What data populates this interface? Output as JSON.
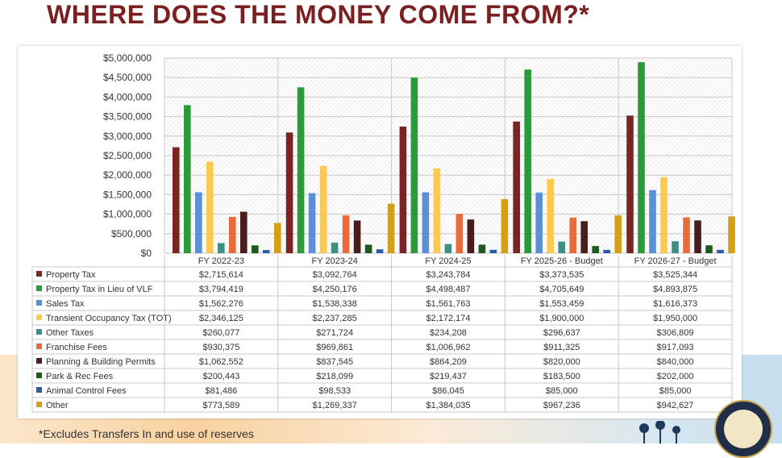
{
  "page": {
    "title": "WHERE DOES THE MONEY COME FROM?*",
    "footnote": "*Excludes Transfers In and use of reserves"
  },
  "chart_data": {
    "type": "bar",
    "categories": [
      "FY 2022-23",
      "FY 2023-24",
      "FY 2024-25",
      "FY 2025-26 - Budget",
      "FY 2026-27 - Budget"
    ],
    "ylim": [
      0,
      5000000
    ],
    "yticks": [
      "$5,000,000",
      "$4,500,000",
      "$4,000,000",
      "$3,500,000",
      "$3,000,000",
      "$2,500,000",
      "$2,000,000",
      "$1,500,000",
      "$1,000,000",
      "$500,000",
      "$0"
    ],
    "ytick_values": [
      5000000,
      4500000,
      4000000,
      3500000,
      3000000,
      2500000,
      2000000,
      1500000,
      1000000,
      500000,
      0
    ],
    "legend_position": "data table below chart",
    "series": [
      {
        "name": "Property Tax",
        "color": "#7b2424",
        "values": [
          2715614,
          3092764,
          3243784,
          3373535,
          3525344
        ],
        "labels": [
          "$2,715,614",
          "$3,092,764",
          "$3,243,784",
          "$3,373,535",
          "$3,525,344"
        ]
      },
      {
        "name": "Property Tax in Lieu of VLF",
        "color": "#2a9a3a",
        "values": [
          3794419,
          4250176,
          4498487,
          4705649,
          4893875
        ],
        "labels": [
          "$3,794,419",
          "$4,250,176",
          "$4,498,487",
          "$4,705,649",
          "$4,893,875"
        ]
      },
      {
        "name": "Sales Tax",
        "color": "#5b8fd6",
        "values": [
          1562276,
          1538338,
          1561763,
          1553459,
          1616373
        ],
        "labels": [
          "$1,562,276",
          "$1,538,338",
          "$1,561,763",
          "$1,553,459",
          "$1,616,373"
        ]
      },
      {
        "name": "Transient Occupancy Tax (TOT)",
        "color": "#ffc94d",
        "values": [
          2346125,
          2237285,
          2172174,
          1900000,
          1950000
        ],
        "labels": [
          "$2,346,125",
          "$2,237,285",
          "$2,172,174",
          "$1,900,000",
          "$1,950,000"
        ]
      },
      {
        "name": "Other Taxes",
        "color": "#3f8f84",
        "values": [
          260077,
          271724,
          234208,
          296637,
          306809
        ],
        "labels": [
          "$260,077",
          "$271,724",
          "$234,208",
          "$296,637",
          "$306,809"
        ]
      },
      {
        "name": "Franchise Fees",
        "color": "#ea6a3c",
        "values": [
          930375,
          969861,
          1006962,
          911325,
          917093
        ],
        "labels": [
          "$930,375",
          "$969,861",
          "$1,006,962",
          "$911,325",
          "$917,093"
        ]
      },
      {
        "name": "Planning & Building Permits",
        "color": "#4a1c1c",
        "values": [
          1062552,
          837545,
          864209,
          820000,
          840000
        ],
        "labels": [
          "$1,062,552",
          "$837,545",
          "$864,209",
          "$820,000",
          "$840,000"
        ]
      },
      {
        "name": "Park & Rec Fees",
        "color": "#1e5a1e",
        "values": [
          200443,
          218099,
          219437,
          183500,
          202000
        ],
        "labels": [
          "$200,443",
          "$218,099",
          "$219,437",
          "$183,500",
          "$202,000"
        ]
      },
      {
        "name": "Animal Control Fees",
        "color": "#2a5ca8",
        "values": [
          81486,
          98533,
          86045,
          85000,
          85000
        ],
        "labels": [
          "$81,486",
          "$98,533",
          "$86,045",
          "$85,000",
          "$85,000"
        ]
      },
      {
        "name": "Other",
        "color": "#d4a017",
        "values": [
          773589,
          1269337,
          1384035,
          967236,
          942627
        ],
        "labels": [
          "$773,589",
          "$1,269,337",
          "$1,384,035",
          "$967,236",
          "$942,627"
        ]
      }
    ]
  }
}
